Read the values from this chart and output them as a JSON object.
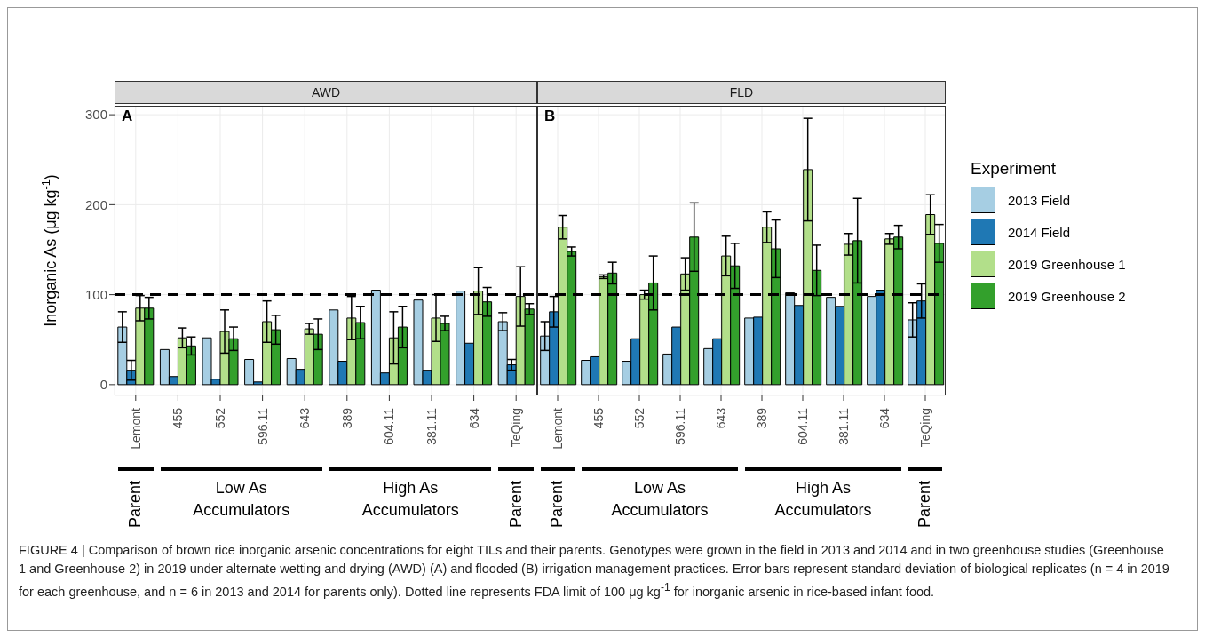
{
  "chart_data": [
    {
      "type": "bar",
      "title": "AWD",
      "ylabel": "Inorganic As (μg kg$^{-1}$)",
      "categories": [
        "Lemont",
        "455",
        "552",
        "596.11",
        "643",
        "389",
        "604.11",
        "381.11",
        "634",
        "TeQing"
      ],
      "series": [
        {
          "color": "#a6cee3",
          "values": [
            64,
            39,
            52,
            28,
            29,
            83,
            105,
            94,
            104,
            70
          ],
          "errors": [
            17,
            null,
            null,
            null,
            null,
            null,
            null,
            null,
            null,
            10
          ]
        },
        {
          "color": "#1f78b4",
          "values": [
            16,
            9,
            6,
            3,
            17,
            26,
            13,
            16,
            46,
            22
          ],
          "errors": [
            11,
            null,
            null,
            null,
            null,
            null,
            null,
            null,
            null,
            6
          ]
        },
        {
          "color": "#b2df8a",
          "values": [
            85,
            52,
            59,
            70,
            62,
            74,
            52,
            74,
            104,
            98
          ],
          "errors": [
            14,
            11,
            24,
            23,
            6,
            24,
            29,
            26,
            26,
            33
          ]
        },
        {
          "color": "#33a02c",
          "values": [
            85,
            43,
            51,
            61,
            56,
            69,
            64,
            68,
            92,
            84
          ],
          "errors": [
            12,
            10,
            13,
            16,
            17,
            18,
            23,
            8,
            16,
            6
          ]
        }
      ],
      "ylim": [
        -12,
        310
      ],
      "yticks": [
        0,
        100,
        200,
        300
      ],
      "grid": true,
      "legend": false,
      "ref_lines": [
        {
          "axis": "y",
          "value": 100,
          "color": "#000000",
          "line_style": "dashed"
        }
      ],
      "annotations": [
        "A",
        "Parent",
        "Low As Accumulators",
        "High As Accumulators",
        "Parent",
        "FIGURE 4 | Comparison of brown rice inorganic arsenic concentrations for eight TILs and their parents. Genotypes were grown in the field in 2013 and 2014 and in two greenhouse studies (Greenhouse 1 and Greenhouse 2) in 2019 under alternate wetting and drying (AWD) (A) and flooded (B) irrigation management practices. Error bars represent standard deviation of biological replicates (n = 4 in 2019 for each greenhouse, and n = 6 in 2013 and 2014 for parents only). Dotted line represents FDA limit of 100 μg kg$^{-1}$ for inorganic arsenic in rice-based infant food."
      ]
    },
    {
      "type": "bar",
      "title": "FLD",
      "categories": [
        "Lemont",
        "455",
        "552",
        "596.11",
        "643",
        "389",
        "604.11",
        "381.11",
        "634",
        "TeQing"
      ],
      "series": [
        {
          "name": "2013 Field",
          "color": "#a6cee3",
          "values": [
            54,
            27,
            26,
            34,
            40,
            74,
            102,
            97,
            98,
            72
          ],
          "errors": [
            16,
            null,
            null,
            null,
            null,
            null,
            null,
            null,
            null,
            19
          ]
        },
        {
          "name": "2014 Field",
          "color": "#1f78b4",
          "values": [
            81,
            31,
            51,
            64,
            51,
            75,
            88,
            87,
            105,
            93
          ],
          "errors": [
            17,
            null,
            null,
            null,
            null,
            null,
            null,
            null,
            null,
            19
          ]
        },
        {
          "name": "2019 Greenhouse 1",
          "color": "#b2df8a",
          "values": [
            175,
            120,
            100,
            123,
            143,
            175,
            239,
            156,
            162,
            189
          ],
          "errors": [
            13,
            2,
            5,
            18,
            22,
            17,
            57,
            12,
            6,
            22
          ]
        },
        {
          "name": "2019 Greenhouse 2",
          "color": "#33a02c",
          "values": [
            148,
            124,
            113,
            164,
            132,
            151,
            127,
            160,
            164,
            157
          ],
          "errors": [
            5,
            12,
            30,
            38,
            25,
            32,
            28,
            47,
            13,
            21
          ]
        }
      ],
      "ylim": [
        -12,
        310
      ],
      "yticks": [
        0,
        100,
        200,
        300
      ],
      "grid": true,
      "legend": "right",
      "legend_title": "Experiment",
      "tick_labels": "x",
      "ref_lines": [
        {
          "axis": "y",
          "value": 100,
          "color": "#000000",
          "line_style": "dashed"
        }
      ],
      "annotations": [
        "B",
        "Parent",
        "Low As Accumulators",
        "High As Accumulators",
        "Parent"
      ]
    }
  ]
}
